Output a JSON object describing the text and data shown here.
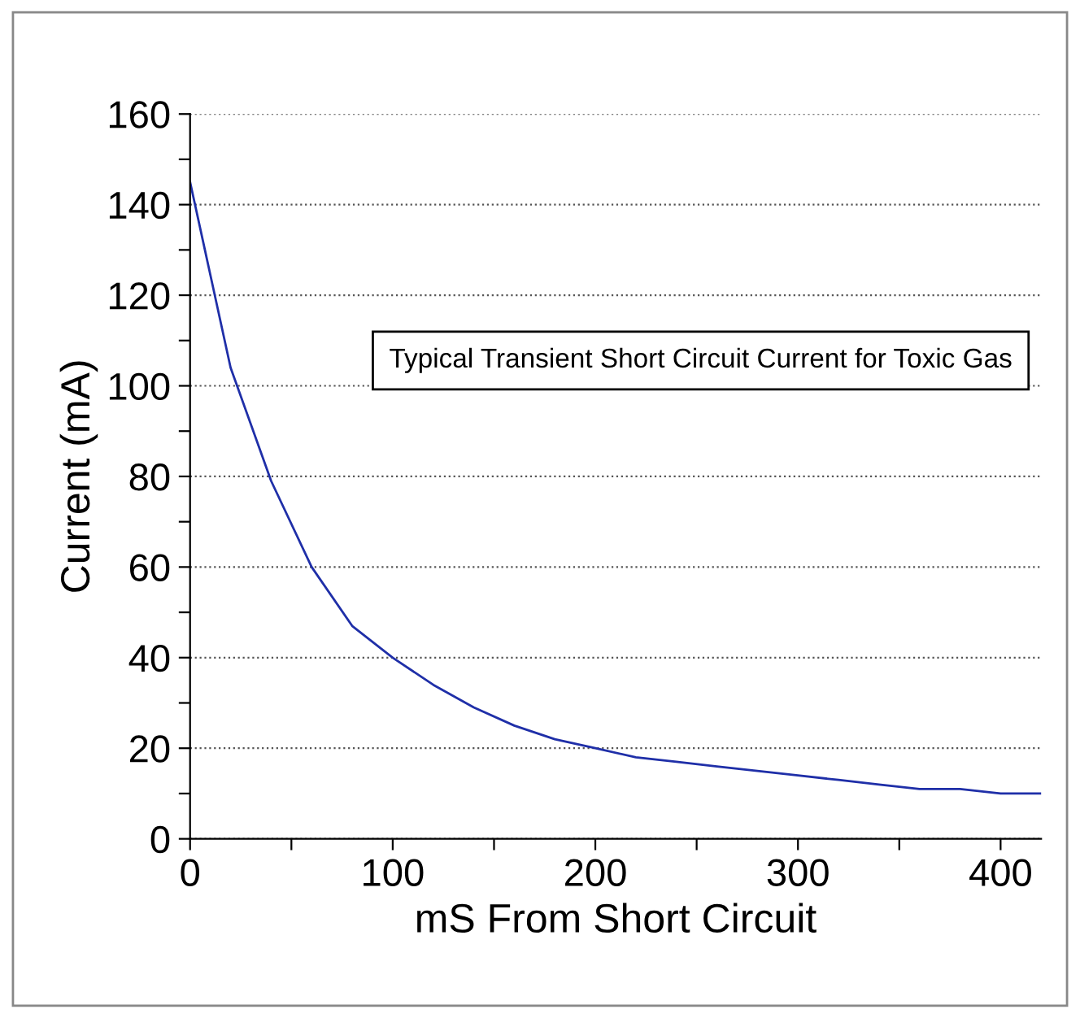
{
  "chart_data": {
    "type": "line",
    "xlabel": "mS From Short Circuit",
    "ylabel": "Current (mA)",
    "annotations": [
      "Typical Transient Short Circuit Current for Toxic Gas"
    ],
    "x": [
      0,
      20,
      40,
      60,
      80,
      100,
      120,
      140,
      160,
      180,
      200,
      220,
      240,
      260,
      280,
      300,
      320,
      340,
      360,
      380,
      400,
      420
    ],
    "series": [
      {
        "color": "#1f2fa8",
        "values": [
          145,
          104,
          79,
          60,
          47,
          40,
          34,
          29,
          25,
          22,
          20,
          18,
          17,
          16,
          15,
          14,
          13,
          12,
          11,
          11,
          10,
          10
        ]
      }
    ],
    "xlim": [
      0,
      420
    ],
    "ylim": [
      0,
      160
    ],
    "xticks": [
      0,
      {
        "value": 50,
        "label": null
      },
      100,
      {
        "value": 150,
        "label": null
      },
      200,
      {
        "value": 250,
        "label": null
      },
      300,
      {
        "value": 350,
        "label": null
      },
      400
    ],
    "yticks": [
      0,
      {
        "value": 10,
        "label": null
      },
      20,
      {
        "value": 30,
        "label": null
      },
      40,
      {
        "value": 50,
        "label": null
      },
      60,
      {
        "value": 70,
        "label": null
      },
      80,
      {
        "value": 90,
        "label": null
      },
      100,
      {
        "value": 110,
        "label": null
      },
      120,
      {
        "value": 130,
        "label": null
      },
      140,
      {
        "value": 150,
        "label": null
      },
      160
    ],
    "grid": "y",
    "marker": "none",
    "line_style": "solid"
  }
}
